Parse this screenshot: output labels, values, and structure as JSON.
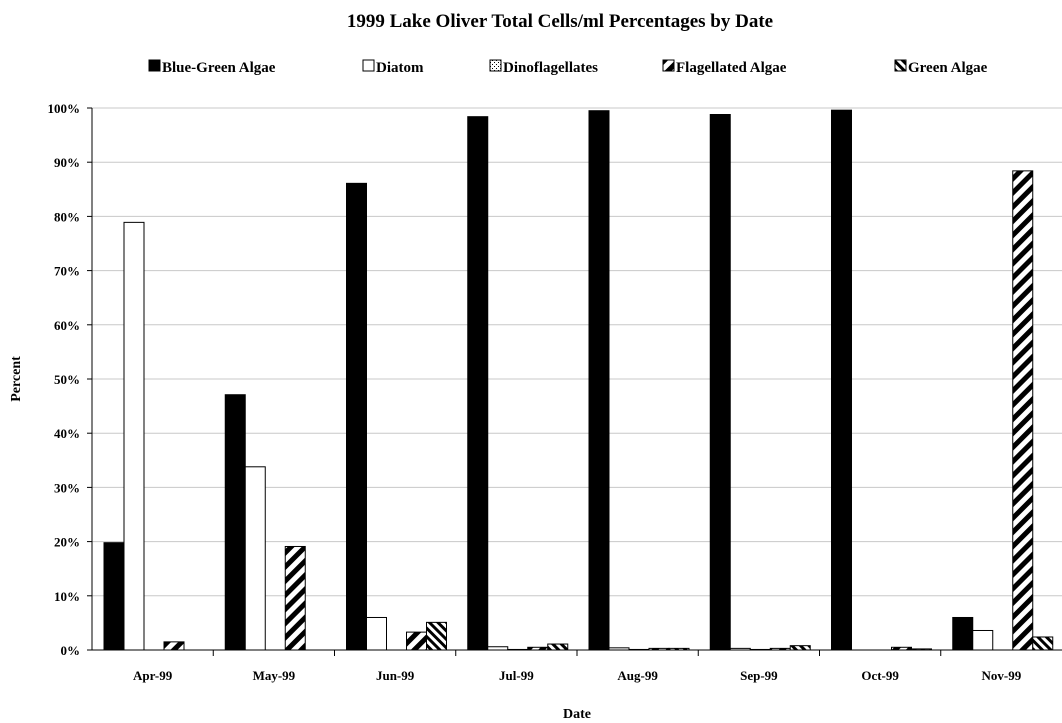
{
  "chart_data": {
    "type": "bar",
    "title": "1999 Lake Oliver Total Cells/ml Percentages by Date",
    "xlabel": "Date",
    "ylabel": "Percent",
    "ylim": [
      0,
      100
    ],
    "ytick_labels": [
      "0%",
      "10%",
      "20%",
      "30%",
      "40%",
      "50%",
      "60%",
      "70%",
      "80%",
      "90%",
      "100%"
    ],
    "categories": [
      "Apr-99",
      "May-99",
      "Jun-99",
      "Jul-99",
      "Aug-99",
      "Sep-99",
      "Oct-99",
      "Nov-99"
    ],
    "grid": true,
    "legend_position": "top",
    "series": [
      {
        "name": "Blue-Green Algae",
        "pattern": "solid-black",
        "values": [
          19.8,
          47.1,
          86.1,
          98.4,
          99.5,
          98.8,
          99.6,
          6.0
        ]
      },
      {
        "name": "Diatom",
        "pattern": "white",
        "values": [
          78.9,
          33.8,
          6.0,
          0.6,
          0.4,
          0.3,
          0.0,
          3.6
        ]
      },
      {
        "name": "Dinoflagellates",
        "pattern": "dotted",
        "values": [
          0.0,
          0.0,
          0.0,
          0.1,
          0.1,
          0.1,
          0.0,
          0.0
        ]
      },
      {
        "name": "Flagellated Algae",
        "pattern": "wide-diagonal-stripes",
        "values": [
          1.5,
          19.1,
          3.3,
          0.5,
          0.3,
          0.3,
          0.5,
          88.4
        ]
      },
      {
        "name": "Green Algae",
        "pattern": "diagonal-stripes",
        "values": [
          0.0,
          0.0,
          5.1,
          1.1,
          0.3,
          0.8,
          0.2,
          2.4
        ]
      }
    ]
  }
}
